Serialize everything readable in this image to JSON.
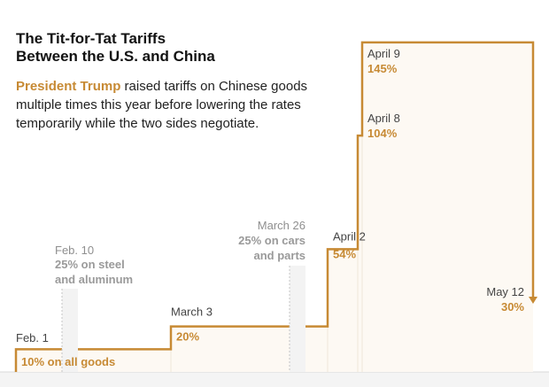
{
  "header": {
    "title": "The Tit-for-Tat Tariffs\nBetween the U.S. and China",
    "subtitle_highlight": "President Trump",
    "subtitle_rest": " raised tariffs on Chinese goods multiple times this year before lowering the rates temporarily while the two sides negotiate."
  },
  "colors": {
    "accent": "#c78a34",
    "step_fill": "#fdf9f3",
    "muted_text": "#8f8f8f",
    "muted_band": "#f3f3f3"
  },
  "chart_data": {
    "type": "line",
    "subtype": "step",
    "x": [
      "Feb. 1",
      "March 3",
      "April 2",
      "April 8",
      "April 9",
      "May 12"
    ],
    "values": [
      10,
      20,
      54,
      104,
      145,
      30
    ],
    "ylim": [
      0,
      150
    ],
    "grid": false,
    "annotations": [
      {
        "date": "Feb. 1",
        "value": "10% on all goods",
        "style": "accent"
      },
      {
        "date": "March 3",
        "value": "20%",
        "style": "accent"
      },
      {
        "date": "April 2",
        "value": "54%",
        "style": "accent"
      },
      {
        "date": "April 8",
        "value": "104%",
        "style": "accent"
      },
      {
        "date": "April 9",
        "value": "145%",
        "style": "accent"
      },
      {
        "date": "May 12",
        "value": "30%",
        "style": "accent"
      }
    ],
    "side_notes": [
      {
        "date": "Feb. 10",
        "lines": [
          "25% on steel",
          "and aluminum"
        ]
      },
      {
        "date": "March 26",
        "lines": [
          "25% on cars",
          "and parts"
        ]
      }
    ]
  }
}
